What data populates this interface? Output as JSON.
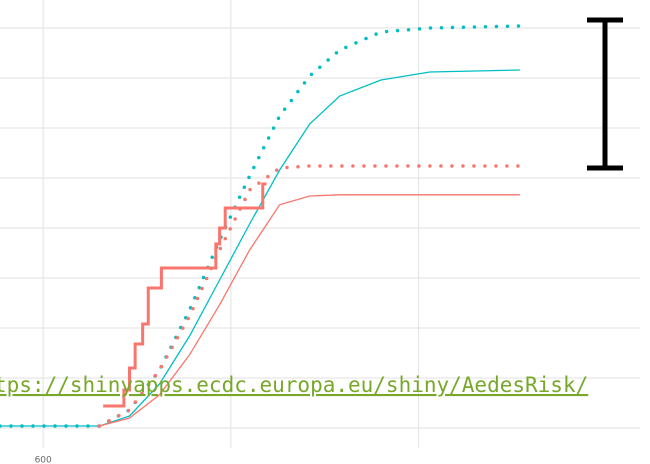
{
  "chart_data": {
    "type": "line",
    "x": [
      577,
      630,
      646,
      662,
      678,
      694,
      710,
      726,
      742,
      758,
      780,
      806,
      854
    ],
    "xlim": [
      577,
      918
    ],
    "xticks": [
      600
    ],
    "xgrid": [
      700,
      800
    ],
    "ylim": [
      -0.05,
      1.07
    ],
    "ygrid": [
      0,
      0.125,
      0.25,
      0.375,
      0.5,
      0.625,
      0.75,
      0.875,
      1
    ],
    "series": [
      {
        "color": "#00bfc4",
        "dash": "dotted",
        "values": [
          0.005,
          0.005,
          0.045,
          0.145,
          0.295,
          0.47,
          0.63,
          0.78,
          0.88,
          0.945,
          0.99,
          1.0,
          1.005
        ]
      },
      {
        "color": "#00bfc4",
        "dash": "solid",
        "values": [
          0.005,
          0.005,
          0.03,
          0.11,
          0.23,
          0.37,
          0.51,
          0.645,
          0.76,
          0.83,
          0.87,
          0.89,
          0.895
        ]
      },
      {
        "color": "#f8766d",
        "dash": "dotted",
        "values": [
          null,
          0.005,
          0.045,
          0.145,
          0.28,
          0.445,
          0.595,
          0.65,
          0.655,
          0.655,
          0.655,
          0.655,
          0.655
        ]
      },
      {
        "color": "#f8766d",
        "dash": "solid",
        "values": [
          null,
          0.005,
          0.025,
          0.083,
          0.183,
          0.308,
          0.445,
          0.558,
          0.58,
          0.583,
          0.583,
          0.583,
          0.583
        ]
      },
      {
        "color": "#f8766d",
        "dash": "step",
        "x": [
          632,
          643,
          646,
          649,
          653,
          656,
          663,
          692,
          694,
          697,
          717,
          719
        ],
        "values": [
          0.055,
          0.095,
          0.15,
          0.21,
          0.26,
          0.35,
          0.4,
          0.46,
          0.5,
          0.55,
          0.61,
          0.61
        ]
      }
    ],
    "link": "tps://shinyapps.ecdc.europa.eu/shiny/AedesRisk/"
  }
}
